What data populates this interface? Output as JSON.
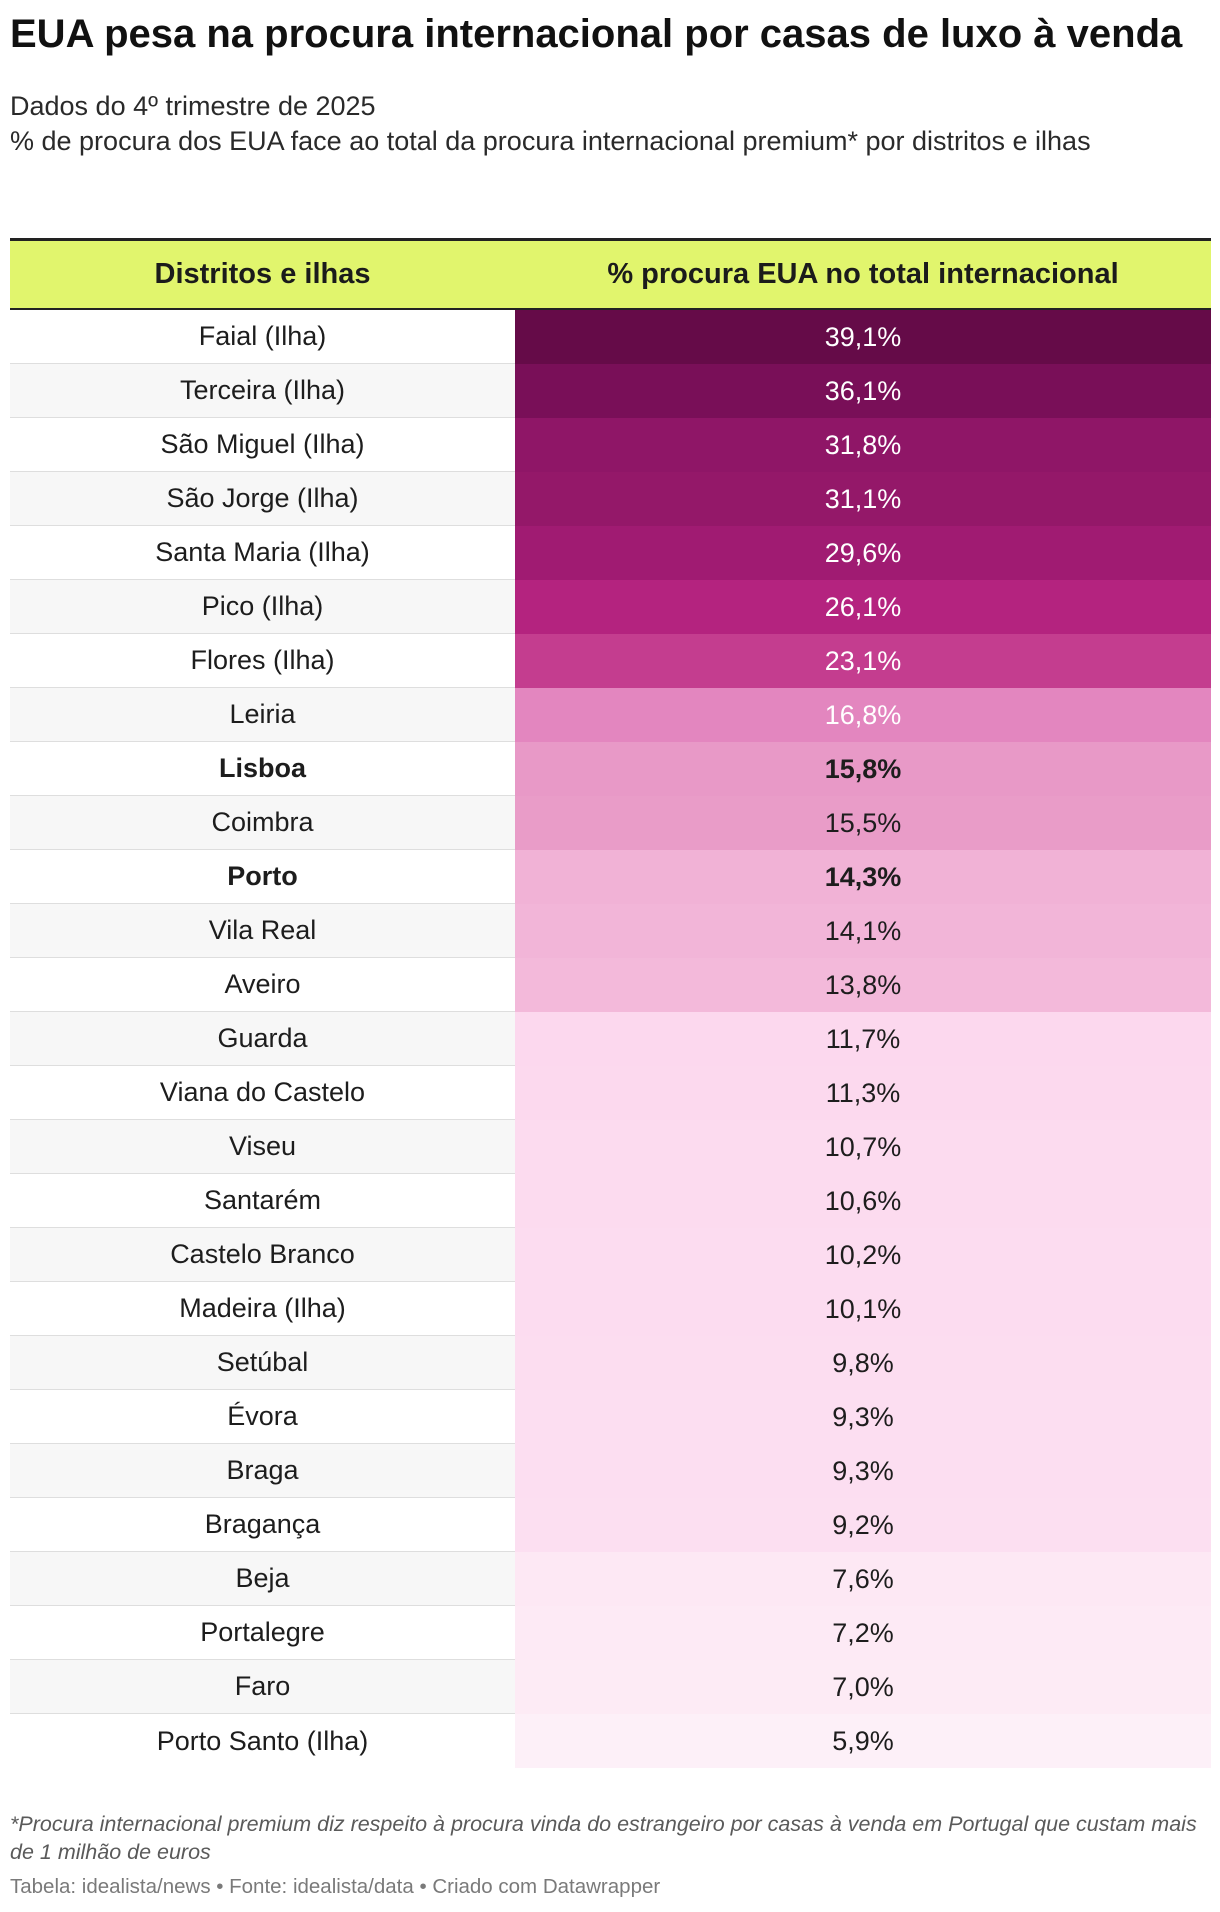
{
  "title": "EUA pesa na procura internacional por casas de luxo à venda",
  "subtitle_line1": "Dados do 4º trimestre de 2025",
  "subtitle_line2": "% de procura dos EUA face ao total da procura internacional premium* por distritos e ilhas",
  "chart_data": {
    "type": "table",
    "columns": [
      "Distritos e ilhas",
      "% procura EUA no total internacional"
    ],
    "rows": [
      {
        "name": "Faial (Ilha)",
        "value": "39,1%",
        "v": 39.1,
        "color": "#650b48",
        "text_color": "#ffffff"
      },
      {
        "name": "Terceira (Ilha)",
        "value": "36,1%",
        "v": 36.1,
        "color": "#790f58",
        "text_color": "#ffffff"
      },
      {
        "name": "São Miguel (Ilha)",
        "value": "31,8%",
        "v": 31.8,
        "color": "#8f1667",
        "text_color": "#ffffff"
      },
      {
        "name": "São Jorge (Ilha)",
        "value": "31,1%",
        "v": 31.1,
        "color": "#941869",
        "text_color": "#ffffff"
      },
      {
        "name": "Santa Maria (Ilha)",
        "value": "29,6%",
        "v": 29.6,
        "color": "#a01b72",
        "text_color": "#ffffff"
      },
      {
        "name": "Pico (Ilha)",
        "value": "26,1%",
        "v": 26.1,
        "color": "#b4237f",
        "text_color": "#ffffff"
      },
      {
        "name": "Flores (Ilha)",
        "value": "23,1%",
        "v": 23.1,
        "color": "#c43d8f",
        "text_color": "#ffffff"
      },
      {
        "name": "Leiria",
        "value": "16,8%",
        "v": 16.8,
        "color": "#e386bf",
        "text_color": "#ffffff"
      },
      {
        "name": "Lisboa",
        "value": "15,8%",
        "v": 15.8,
        "color": "#e899c7",
        "text_color": "#1d1d1d",
        "bold": true
      },
      {
        "name": "Coimbra",
        "value": "15,5%",
        "v": 15.5,
        "color": "#e99cc8",
        "text_color": "#1d1d1d"
      },
      {
        "name": "Porto",
        "value": "14,3%",
        "v": 14.3,
        "color": "#f1b2d6",
        "text_color": "#1d1d1d",
        "bold": true
      },
      {
        "name": "Vila Real",
        "value": "14,1%",
        "v": 14.1,
        "color": "#f2b5d8",
        "text_color": "#1d1d1d"
      },
      {
        "name": "Aveiro",
        "value": "13,8%",
        "v": 13.8,
        "color": "#f3b9da",
        "text_color": "#1d1d1d"
      },
      {
        "name": "Guarda",
        "value": "11,7%",
        "v": 11.7,
        "color": "#fcd8ee",
        "text_color": "#1d1d1d"
      },
      {
        "name": "Viana do Castelo",
        "value": "11,3%",
        "v": 11.3,
        "color": "#fcd9ee",
        "text_color": "#1d1d1d"
      },
      {
        "name": "Viseu",
        "value": "10,7%",
        "v": 10.7,
        "color": "#fcdbef",
        "text_color": "#1d1d1d"
      },
      {
        "name": "Santarém",
        "value": "10,6%",
        "v": 10.6,
        "color": "#fcdbef",
        "text_color": "#1d1d1d"
      },
      {
        "name": "Castelo Branco",
        "value": "10,2%",
        "v": 10.2,
        "color": "#fcdcf0",
        "text_color": "#1d1d1d"
      },
      {
        "name": "Madeira (Ilha)",
        "value": "10,1%",
        "v": 10.1,
        "color": "#fcdcf0",
        "text_color": "#1d1d1d"
      },
      {
        "name": "Setúbal",
        "value": "9,8%",
        "v": 9.8,
        "color": "#fcddf0",
        "text_color": "#1d1d1d"
      },
      {
        "name": "Évora",
        "value": "9,3%",
        "v": 9.3,
        "color": "#fcdef1",
        "text_color": "#1d1d1d"
      },
      {
        "name": "Braga",
        "value": "9,3%",
        "v": 9.3,
        "color": "#fcdef1",
        "text_color": "#1d1d1d"
      },
      {
        "name": "Bragança",
        "value": "9,2%",
        "v": 9.2,
        "color": "#fcdff1",
        "text_color": "#1d1d1d"
      },
      {
        "name": "Beja",
        "value": "7,6%",
        "v": 7.6,
        "color": "#fde8f4",
        "text_color": "#1d1d1d"
      },
      {
        "name": "Portalegre",
        "value": "7,2%",
        "v": 7.2,
        "color": "#fdeaf5",
        "text_color": "#1d1d1d"
      },
      {
        "name": "Faro",
        "value": "7,0%",
        "v": 7.0,
        "color": "#fdebf5",
        "text_color": "#1d1d1d"
      },
      {
        "name": "Porto Santo (Ilha)",
        "value": "5,9%",
        "v": 5.9,
        "color": "#fdf0f8",
        "text_color": "#1d1d1d"
      }
    ]
  },
  "footnote": "*Procura internacional premium diz respeito à procura vinda do estrangeiro por casas à venda em Portugal que custam mais de 1 milhão de euros",
  "source": "Tabela: idealista/news • Fonte: idealista/data • Criado com Datawrapper"
}
